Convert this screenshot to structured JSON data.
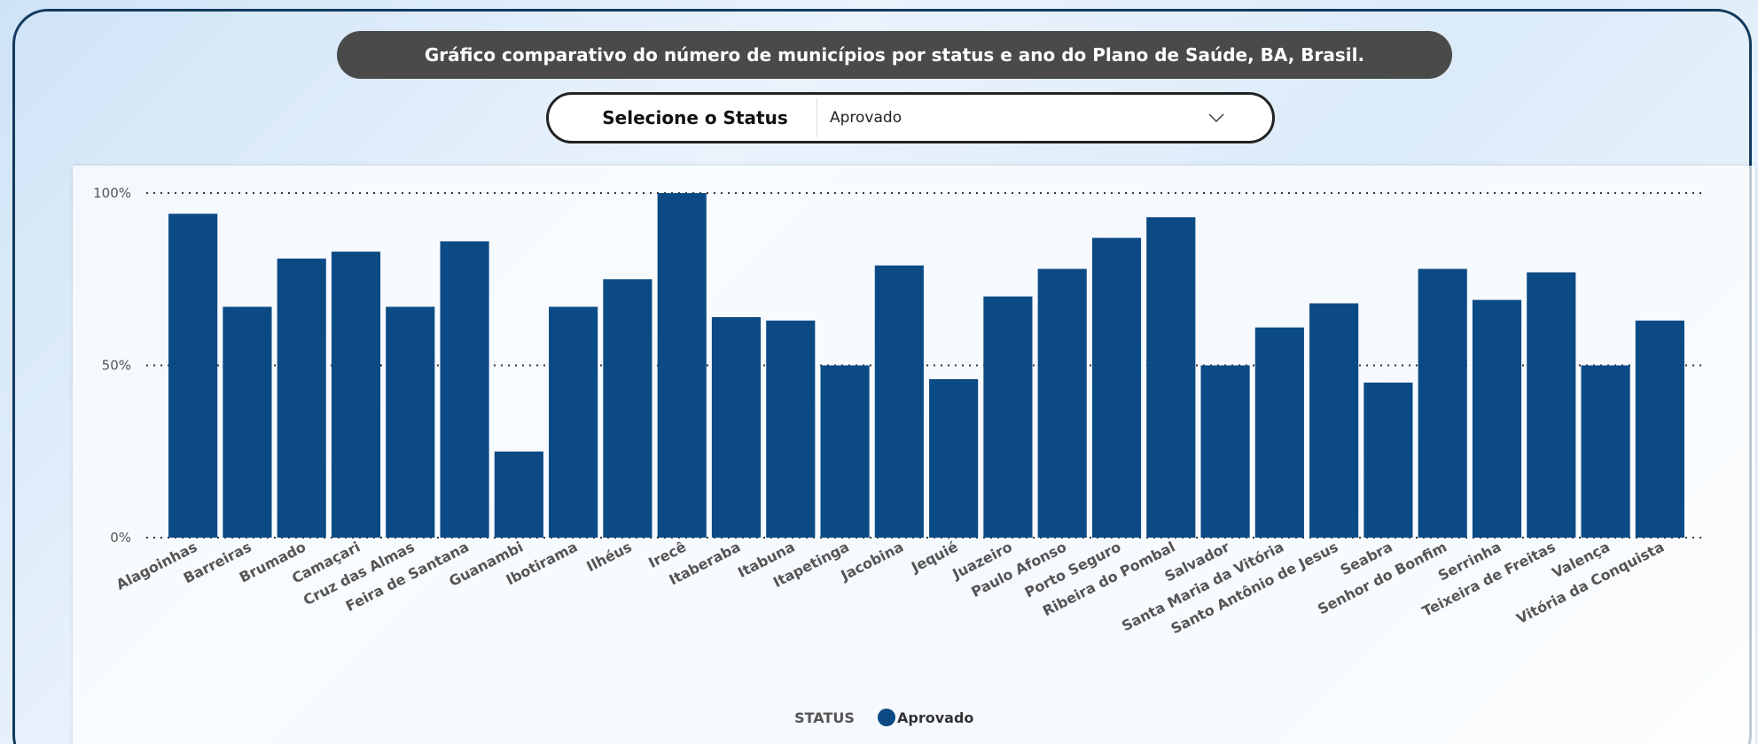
{
  "header": {
    "title": "Gráfico comparativo do número de municípios por status e ano do Plano de Saúde, BA, Brasil."
  },
  "filter": {
    "label": "Selecione o Status",
    "selected": "Aprovado"
  },
  "chart_data": {
    "type": "bar",
    "categories": [
      "Alagoinhas",
      "Barreiras",
      "Brumado",
      "Camaçari",
      "Cruz das Almas",
      "Feira de Santana",
      "Guanambi",
      "Ibotirama",
      "Ilhéus",
      "Irecê",
      "Itaberaba",
      "Itabuna",
      "Itapetinga",
      "Jacobina",
      "Jequié",
      "Juazeiro",
      "Paulo Afonso",
      "Porto Seguro",
      "Ribeira do Pombal",
      "Salvador",
      "Santa Maria da Vitória",
      "Santo Antônio de Jesus",
      "Seabra",
      "Senhor do Bonfim",
      "Serrinha",
      "Teixeira de Freitas",
      "Valença",
      "Vitória da Conquista"
    ],
    "series": [
      {
        "name": "Aprovado",
        "color": "#0b4a85",
        "values": [
          94,
          67,
          81,
          83,
          67,
          86,
          25,
          67,
          75,
          100,
          64,
          63,
          50,
          79,
          46,
          70,
          78,
          87,
          93,
          50,
          61,
          68,
          45,
          78,
          69,
          77,
          50,
          63
        ]
      }
    ],
    "legend_title": "STATUS",
    "ylim": [
      0,
      100
    ],
    "yticks": [
      {
        "value": 0,
        "label": "0%"
      },
      {
        "value": 50,
        "label": "50%"
      },
      {
        "value": 100,
        "label": "100%"
      }
    ],
    "grid": true
  }
}
